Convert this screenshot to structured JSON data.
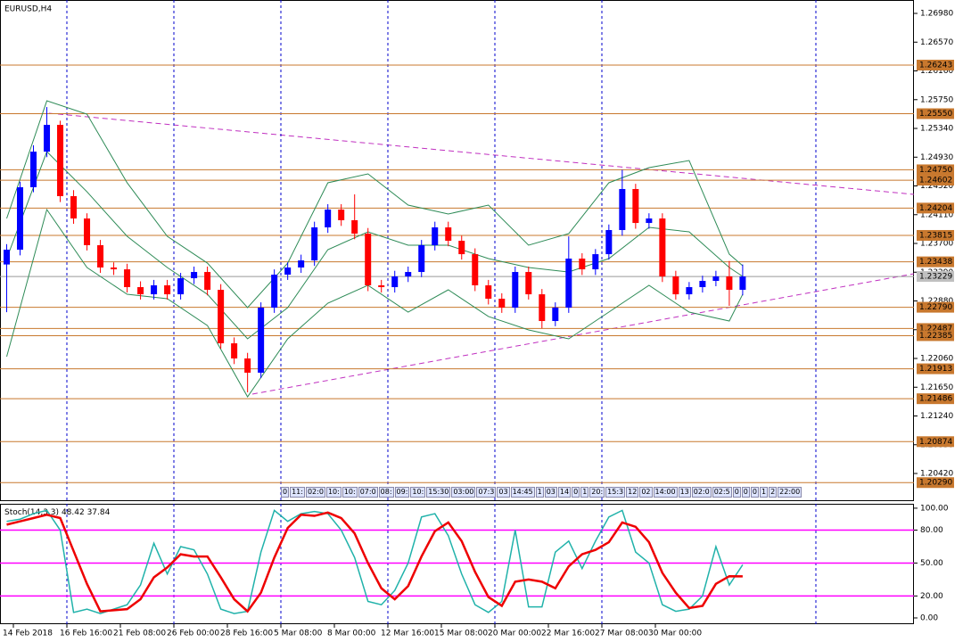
{
  "chart_data": [
    {
      "type": "candlestick",
      "title": "EURUSD,H4",
      "xtick_labels": [
        "14 Feb 2018",
        "16 Feb 16:00",
        "21 Feb 08:00",
        "26 Feb 00:00",
        "28 Feb 16:00",
        "5 Mar 08:00",
        "8 Mar 00:00",
        "12 Mar 16:00",
        "15 Mar 08:00",
        "20 Mar 00:00",
        "22 Mar 16:00",
        "27 Mar 08:00",
        "30 Mar 00:00"
      ],
      "trade_labels": [
        "0",
        "11:",
        "02:0",
        "10:",
        "10:",
        "07:0",
        "08:",
        "09:",
        "10:",
        "15:30",
        "03:00",
        "07:3",
        "03",
        "14:45",
        "1",
        "03",
        "14",
        "0",
        "1",
        "20:",
        "15:3",
        "12",
        "02",
        "14:00",
        "13",
        "02:0",
        "02:5",
        "0",
        "0",
        "0",
        "1",
        "2",
        "22:00"
      ],
      "xlim": [
        -0.5,
        67.8
      ],
      "open": [
        1.234,
        1.23611,
        1.24501,
        1.25009,
        1.25391,
        1.24374,
        1.24056,
        1.23675,
        1.23357,
        1.23331,
        1.23077,
        1.22975,
        1.23103,
        1.22975,
        1.23204,
        1.23293,
        1.23039,
        1.22276,
        1.2206,
        1.21857,
        1.22785,
        1.23255,
        1.23357,
        1.23458,
        1.23929,
        1.24183,
        1.24031,
        1.2384,
        1.23103,
        1.23077,
        1.2323,
        1.23293,
        1.23675,
        1.23929,
        1.23738,
        1.23547,
        1.23103,
        1.22912,
        1.22785,
        1.23293,
        1.22975,
        1.22594,
        1.22785,
        1.23484,
        1.23331,
        1.23547,
        1.23891,
        1.24476,
        1.23992,
        1.24056,
        1.2323,
        1.22975,
        1.23077,
        1.23166,
        1.2323,
        1.23039
      ],
      "high": [
        1.2369,
        1.2458,
        1.251,
        1.25645,
        1.2545,
        1.2446,
        1.2413,
        1.2375,
        1.2343,
        1.2341,
        1.2316,
        1.2318,
        1.2318,
        1.2328,
        1.2337,
        1.2337,
        1.2312,
        1.2236,
        1.2214,
        1.2286,
        1.2333,
        1.2343,
        1.2354,
        1.2401,
        1.2426,
        1.2426,
        1.244,
        1.2392,
        1.2318,
        1.2331,
        1.2337,
        1.2375,
        1.2401,
        1.2401,
        1.2381,
        1.2363,
        1.2318,
        1.2299,
        1.2337,
        1.2337,
        1.2305,
        1.2286,
        1.238,
        1.2356,
        1.2362,
        1.2397,
        1.2475,
        1.2455,
        1.2413,
        1.2413,
        1.2331,
        1.2315,
        1.2324,
        1.2331,
        1.2345,
        1.234
      ],
      "low": [
        1.2272,
        1.2353,
        1.2443,
        1.2493,
        1.2429,
        1.2398,
        1.236,
        1.2328,
        1.2325,
        1.23,
        1.229,
        1.229,
        1.229,
        1.229,
        1.2312,
        1.2296,
        1.222,
        1.2198,
        1.21577,
        1.2178,
        1.2271,
        1.2318,
        1.2328,
        1.2338,
        1.2385,
        1.2395,
        1.2376,
        1.2302,
        1.23,
        1.23,
        1.2315,
        1.2322,
        1.236,
        1.2366,
        1.2347,
        1.2302,
        1.2283,
        1.2271,
        1.2271,
        1.229,
        1.2249,
        1.2252,
        1.2271,
        1.2325,
        1.2325,
        1.2347,
        1.2381,
        1.2391,
        1.2391,
        1.2315,
        1.229,
        1.229,
        1.23,
        1.2309,
        1.2281,
        1.2296
      ],
      "close": [
        1.23611,
        1.24501,
        1.25009,
        1.25391,
        1.24374,
        1.24056,
        1.23675,
        1.23357,
        1.23331,
        1.23077,
        1.22975,
        1.23103,
        1.22975,
        1.23204,
        1.23293,
        1.23039,
        1.22276,
        1.2206,
        1.21857,
        1.22785,
        1.23255,
        1.23357,
        1.23458,
        1.23929,
        1.24183,
        1.24031,
        1.2384,
        1.23103,
        1.23077,
        1.2323,
        1.23293,
        1.23675,
        1.23929,
        1.23738,
        1.23547,
        1.23103,
        1.22912,
        1.22785,
        1.23293,
        1.22975,
        1.22594,
        1.22785,
        1.23484,
        1.23331,
        1.23547,
        1.23891,
        1.24476,
        1.23992,
        1.24056,
        1.2323,
        1.22975,
        1.23077,
        1.23166,
        1.2323,
        1.23039,
        1.23229
      ],
      "up_color": "#0000ff",
      "down_color": "#ff0000",
      "bands": {
        "color": "#2e8b57",
        "x": [
          0,
          3,
          6,
          9,
          12,
          15,
          18,
          21,
          24,
          27,
          30,
          33,
          36,
          39,
          42,
          45,
          48,
          51,
          54,
          55
        ],
        "upper": [
          1.24056,
          1.25734,
          1.25543,
          1.24565,
          1.23802,
          1.2342,
          1.22785,
          1.2342,
          1.24565,
          1.24692,
          1.24247,
          1.2412,
          1.24247,
          1.23675,
          1.2384,
          1.24565,
          1.24781,
          1.24882,
          1.23547,
          1.23382
        ],
        "middle": [
          1.23484,
          1.25009,
          1.24437,
          1.23802,
          1.23357,
          1.22975,
          1.2234,
          1.22785,
          1.23611,
          1.23865,
          1.23675,
          1.23675,
          1.23484,
          1.23357,
          1.23293,
          1.23484,
          1.23929,
          1.23865,
          1.23357,
          1.2323
        ],
        "lower": [
          1.22085,
          1.24183,
          1.23357,
          1.22975,
          1.22912,
          1.2253,
          1.21513,
          1.2234,
          1.22848,
          1.23103,
          1.22721,
          1.23039,
          1.22658,
          1.22467,
          1.2234,
          1.22721,
          1.23103,
          1.22721,
          1.22594,
          1.22975
        ]
      },
      "level_color": "#c8782e",
      "levels": [
        1.26243,
        {
          "value": 1.2555,
          "label": "1.25550"
        },
        {
          "value": 1.2475,
          "label": "1.24750"
        },
        1.24602,
        1.24204,
        1.23815,
        1.23438,
        {
          "value": 1.2279,
          "label": "1.22790"
        },
        1.22487,
        1.22385,
        1.21913,
        1.21486,
        1.20874,
        {
          "value": 1.2029,
          "label": "1.20290"
        }
      ],
      "current_price": 1.23229,
      "ylim": [
        1.20026,
        1.27171
      ],
      "yticks": [
        {
          "value": 1.2698,
          "label": "1.26980"
        },
        {
          "value": 1.2657,
          "label": "1.26570"
        },
        {
          "value": 1.2616,
          "label": "1.26160"
        },
        {
          "value": 1.2575,
          "label": "1.25750"
        },
        {
          "value": 1.2534,
          "label": "1.25340"
        },
        {
          "value": 1.2493,
          "label": "1.24930"
        },
        {
          "value": 1.2452,
          "label": "1.24520"
        },
        {
          "value": 1.2411,
          "label": "1.24110"
        },
        {
          "value": 1.237,
          "label": "1.23700"
        },
        {
          "value": 1.2329,
          "label": "1.23290"
        },
        {
          "value": 1.2288,
          "label": "1.22880"
        },
        {
          "value": 1.2247,
          "label": "1.22470"
        },
        {
          "value": 1.2206,
          "label": "1.22060"
        },
        {
          "value": 1.2165,
          "label": "1.21650"
        },
        {
          "value": 1.2124,
          "label": "1.21240"
        },
        {
          "value": 1.2083,
          "label": "1.20830"
        },
        {
          "value": 1.2042,
          "label": "1.20420"
        }
      ]
    },
    {
      "type": "line",
      "title": "Stoch(14,3,3)",
      "series": [
        {
          "color": "#20b2aa",
          "values": [
            88,
            90,
            95,
            98,
            80,
            5,
            8,
            4,
            8,
            12,
            30,
            68,
            40,
            65,
            62,
            40,
            8,
            4,
            6,
            60,
            98,
            88,
            95,
            97,
            95,
            80,
            55,
            15,
            12,
            25,
            50,
            92,
            95,
            75,
            40,
            12,
            5,
            15,
            80,
            10,
            10,
            60,
            70,
            45,
            70,
            92,
            98,
            60,
            50,
            12,
            6,
            8,
            20,
            65,
            30,
            48.42
          ]
        },
        {
          "color": "#ee0000",
          "values": [
            85,
            88,
            91,
            94,
            91,
            61,
            31,
            6,
            7,
            8,
            17,
            37,
            46,
            58,
            56,
            56,
            37,
            17,
            6,
            23,
            55,
            82,
            94,
            93,
            96,
            91,
            77,
            50,
            27,
            17,
            29,
            56,
            79,
            87,
            70,
            42,
            19,
            11,
            33,
            35,
            33,
            27,
            47,
            58,
            62,
            69,
            87,
            83,
            69,
            41,
            23,
            9,
            11,
            31,
            38,
            37.84
          ]
        }
      ],
      "levels": [
        80,
        50,
        20
      ],
      "level_color": "#ff00ff",
      "ylim": [
        -5.7,
        104
      ],
      "yticks": [
        {
          "value": 100,
          "label": "100.00"
        },
        {
          "value": 80,
          "label": "80.00"
        },
        {
          "value": 50,
          "label": "50.00"
        },
        {
          "value": 20,
          "label": "20.00"
        },
        {
          "value": 0,
          "label": "0.00"
        }
      ]
    }
  ]
}
